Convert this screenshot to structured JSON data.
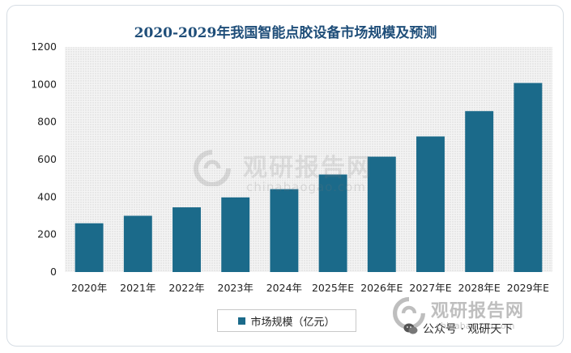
{
  "chart_data": {
    "type": "bar",
    "title": "2020-2029年我国智能点胶设备市场规模及预测",
    "categories": [
      "2020年",
      "2021年",
      "2022年",
      "2023年",
      "2024年",
      "2025年E",
      "2026年E",
      "2027年E",
      "2028年E",
      "2029年E"
    ],
    "series": [
      {
        "name": "市场规模（亿元）",
        "values": [
          260,
          300,
          345,
          398,
          442,
          520,
          615,
          723,
          858,
          1008
        ]
      }
    ],
    "ylim": [
      0,
      1200
    ],
    "yticks": [
      0,
      200,
      400,
      600,
      800,
      1000,
      1200
    ],
    "grid": false,
    "legend_position": "bottom",
    "bar_color": "#1b6a8a",
    "plot_bg_color": "#ebebeb"
  },
  "watermark": {
    "brand": "观研报告网",
    "site": "chinabaogao.com"
  },
  "account": {
    "label": "公众号 · 观研天下"
  }
}
